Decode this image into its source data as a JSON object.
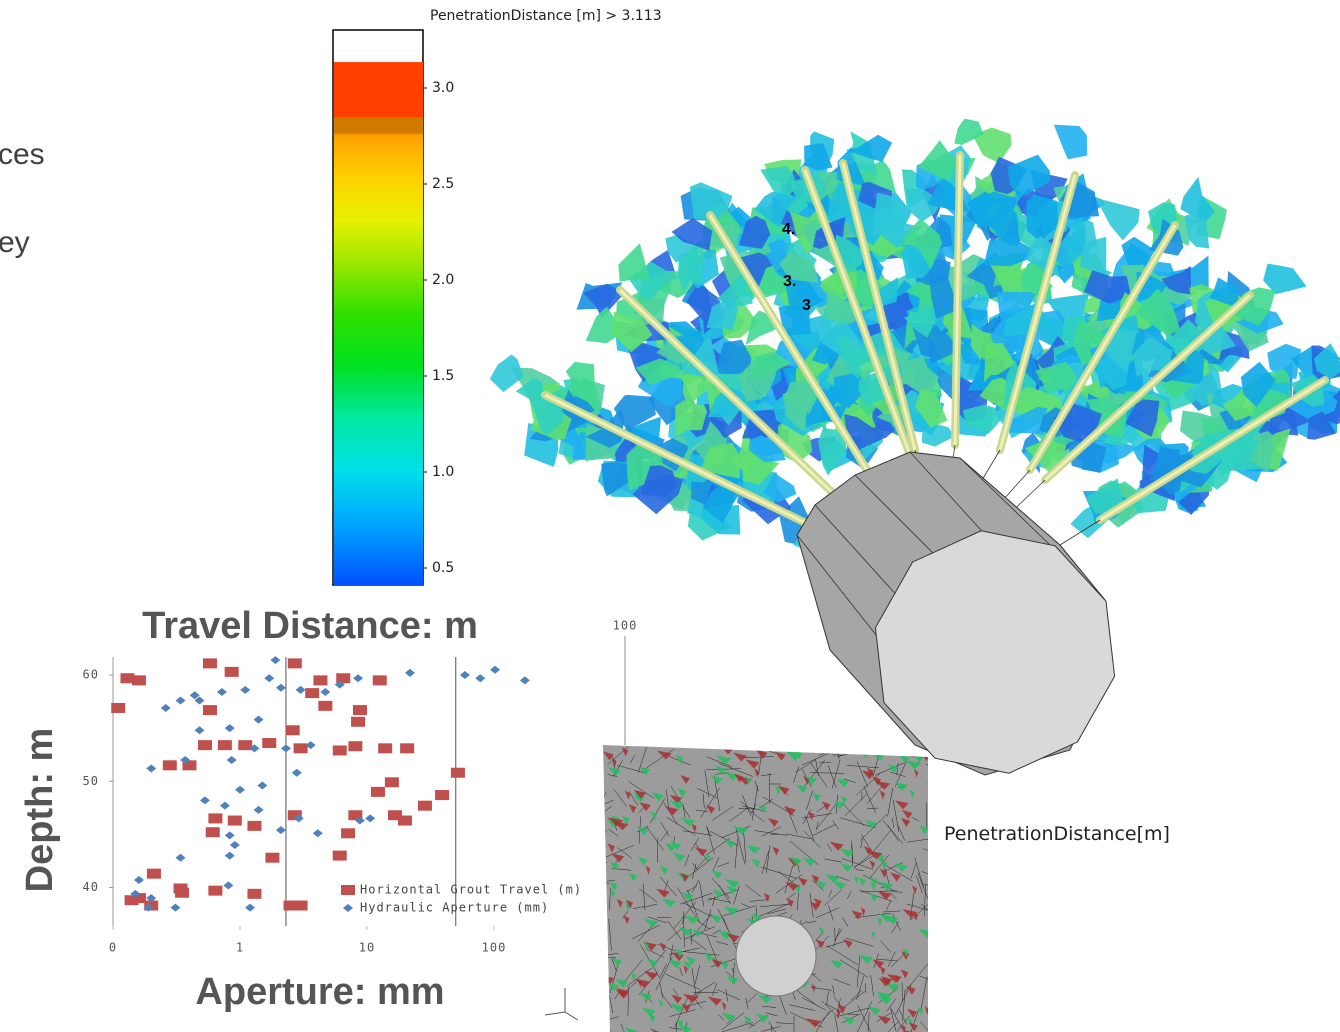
{
  "slide": {
    "fragments": [
      "ces",
      "ey"
    ],
    "top_axis_label": "100"
  },
  "colorbar": {
    "title": "PenetrationDistance [m] > 3.113",
    "lim": [
      0.41,
      3.135
    ],
    "ticks": [
      {
        "value": 3.0,
        "label": "3.0"
      },
      {
        "value": 2.5,
        "label": "2.5"
      },
      {
        "value": 2.0,
        "label": "2.0"
      },
      {
        "value": 1.5,
        "label": "1.5"
      },
      {
        "value": 1.0,
        "label": "1.0"
      },
      {
        "value": 0.5,
        "label": "0.5"
      }
    ]
  },
  "viewer": {
    "label": "PenetrationDistance[m]",
    "contour_labels": [
      "4.",
      "3.",
      "3"
    ]
  },
  "chart_data": {
    "type": "scatter",
    "title": "Travel Distance:  m",
    "x_label": "Aperture:  mm",
    "y_label": "Depth:  m",
    "xscale": "log",
    "xlim": [
      0.1,
      1000
    ],
    "ylim": [
      37.5,
      61.7
    ],
    "xticks": [
      {
        "value": 0.1,
        "label": "0"
      },
      1,
      10,
      100,
      {
        "value": 1000,
        "label": "1"
      }
    ],
    "yticks": [
      60,
      50,
      40
    ],
    "xlines": [
      2.3,
      50
    ],
    "series": [
      {
        "name": "Horizontal Grout Travel (m)",
        "color": "#c0504d",
        "marker": "square",
        "x": [
          0.11,
          0.16,
          0.13,
          0.58,
          0.86,
          2.7,
          4.3,
          6.5,
          12.6,
          3.7,
          4.7,
          8.8,
          0.58,
          0.53,
          0.76,
          1.1,
          1.7,
          2.6,
          3.0,
          6.1,
          8.5,
          13.9,
          20.7,
          8.1,
          52,
          15.7,
          12.2,
          39,
          28.6,
          16.6,
          19.9,
          8.1,
          2.7,
          0.64,
          0.91,
          1.3,
          0.61,
          7.1,
          6.1,
          1.8,
          0.4,
          0.21,
          0.34,
          0.14,
          0.2,
          0.16,
          0.35,
          0.64,
          1.3,
          2.5,
          3.0,
          0.28
        ],
        "values": [
          56.9,
          59.5,
          59.7,
          61.1,
          60.3,
          61.1,
          59.5,
          59.7,
          59.5,
          58.3,
          57.1,
          56.7,
          56.7,
          53.4,
          53.4,
          53.4,
          53.6,
          54.8,
          53.1,
          52.9,
          55.6,
          53.1,
          53.1,
          53.3,
          50.8,
          49.9,
          49.0,
          48.7,
          47.7,
          46.8,
          46.3,
          46.8,
          46.8,
          46.5,
          46.3,
          45.8,
          45.2,
          45.1,
          43.0,
          42.8,
          51.5,
          41.3,
          39.9,
          38.8,
          38.3,
          39.0,
          39.5,
          39.7,
          39.4,
          38.3,
          38.3,
          51.5
        ]
      },
      {
        "name": "Hydraulic Aperture (mm)",
        "color": "#4f81bd",
        "marker": "diamond",
        "x": [
          0.2,
          0.26,
          0.34,
          0.44,
          0.48,
          0.72,
          1.1,
          1.7,
          2.1,
          3.0,
          4.7,
          6.1,
          8.5,
          21.8,
          59,
          78,
          102,
          175,
          1.9,
          1.4,
          0.48,
          0.37,
          0.83,
          1.3,
          2.3,
          3.6,
          0.86,
          1.5,
          1.0,
          0.53,
          0.76,
          1.4,
          2.1,
          2.9,
          4.1,
          10.6,
          8.8,
          0.83,
          0.91,
          0.83,
          0.34,
          0.81,
          0.16,
          0.15,
          0.19,
          0.31,
          1.2,
          0.2,
          2.8
        ],
        "values": [
          51.2,
          56.9,
          57.6,
          58.1,
          57.6,
          58.4,
          58.6,
          59.7,
          58.8,
          58.6,
          58.4,
          59.1,
          59.7,
          60.2,
          60.0,
          59.7,
          60.5,
          59.5,
          61.4,
          55.8,
          54.8,
          52.0,
          55.0,
          53.1,
          53.1,
          53.4,
          52.0,
          49.6,
          49.2,
          48.2,
          47.7,
          47.3,
          45.4,
          46.5,
          45.1,
          46.5,
          46.3,
          44.9,
          44.0,
          43.0,
          42.8,
          40.2,
          40.7,
          39.4,
          38.1,
          38.1,
          38.1,
          39.0,
          50.8
        ]
      }
    ]
  }
}
